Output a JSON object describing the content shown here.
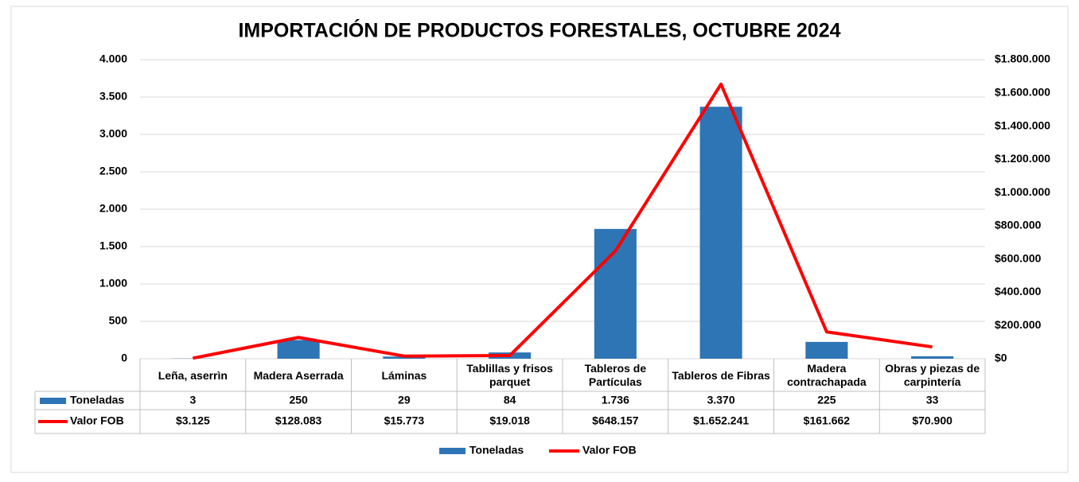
{
  "chart_data": {
    "type": "bar_line_table",
    "title": "IMPORTACIÓN DE PRODUCTOS FORESTALES, OCTUBRE 2024",
    "categories": [
      "Leña, aserrìn",
      "Madera Aserrada",
      "Láminas",
      "Tablillas y frisos parquet",
      "Tableros de Partículas",
      "Tableros de Fibras",
      "Madera contrachapada",
      "Obras y piezas de carpintería"
    ],
    "series": [
      {
        "name": "Toneladas",
        "type": "bar",
        "color": "#2e75b6",
        "axis": "y",
        "values": [
          3,
          250,
          29,
          84,
          1736,
          3370,
          225,
          33
        ],
        "value_labels": [
          "3",
          "250",
          "29",
          "84",
          "1.736",
          "3.370",
          "225",
          "33"
        ]
      },
      {
        "name": "Valor FOB",
        "type": "line",
        "color": "#ff0000",
        "axis": "y2",
        "values": [
          3125,
          128083,
          15773,
          19018,
          648157,
          1652241,
          161662,
          70900
        ],
        "value_labels": [
          "$3.125",
          "$128.083",
          "$15.773",
          "$19.018",
          "$648.157",
          "$1.652.241",
          "$161.662",
          "$70.900"
        ]
      }
    ],
    "ylim": [
      0,
      4000
    ],
    "yticks": [
      0,
      500,
      {
        "value": 1000,
        "label": "1.000"
      },
      {
        "value": 1500,
        "label": "1.500"
      },
      {
        "value": 2000,
        "label": "2.000"
      },
      {
        "value": 2500,
        "label": "2.500"
      },
      {
        "value": 3000,
        "label": "3.000"
      },
      {
        "value": 3500,
        "label": "3.500"
      },
      {
        "value": 4000,
        "label": "4.000"
      }
    ],
    "y2lim": [
      0,
      1800000
    ],
    "y2ticks": [
      {
        "value": 0,
        "label": "$0"
      },
      {
        "value": 200000,
        "label": "$200.000"
      },
      {
        "value": 400000,
        "label": "$400.000"
      },
      {
        "value": 600000,
        "label": "$600.000"
      },
      {
        "value": 800000,
        "label": "$800.000"
      },
      {
        "value": 1000000,
        "label": "$1.000.000"
      },
      {
        "value": 1200000,
        "label": "$1.200.000"
      },
      {
        "value": 1400000,
        "label": "$1.400.000"
      },
      {
        "value": 1600000,
        "label": "$1.600.000"
      },
      {
        "value": 1800000,
        "label": "$1.800.000"
      }
    ],
    "grid": true,
    "legend": "bottom"
  }
}
